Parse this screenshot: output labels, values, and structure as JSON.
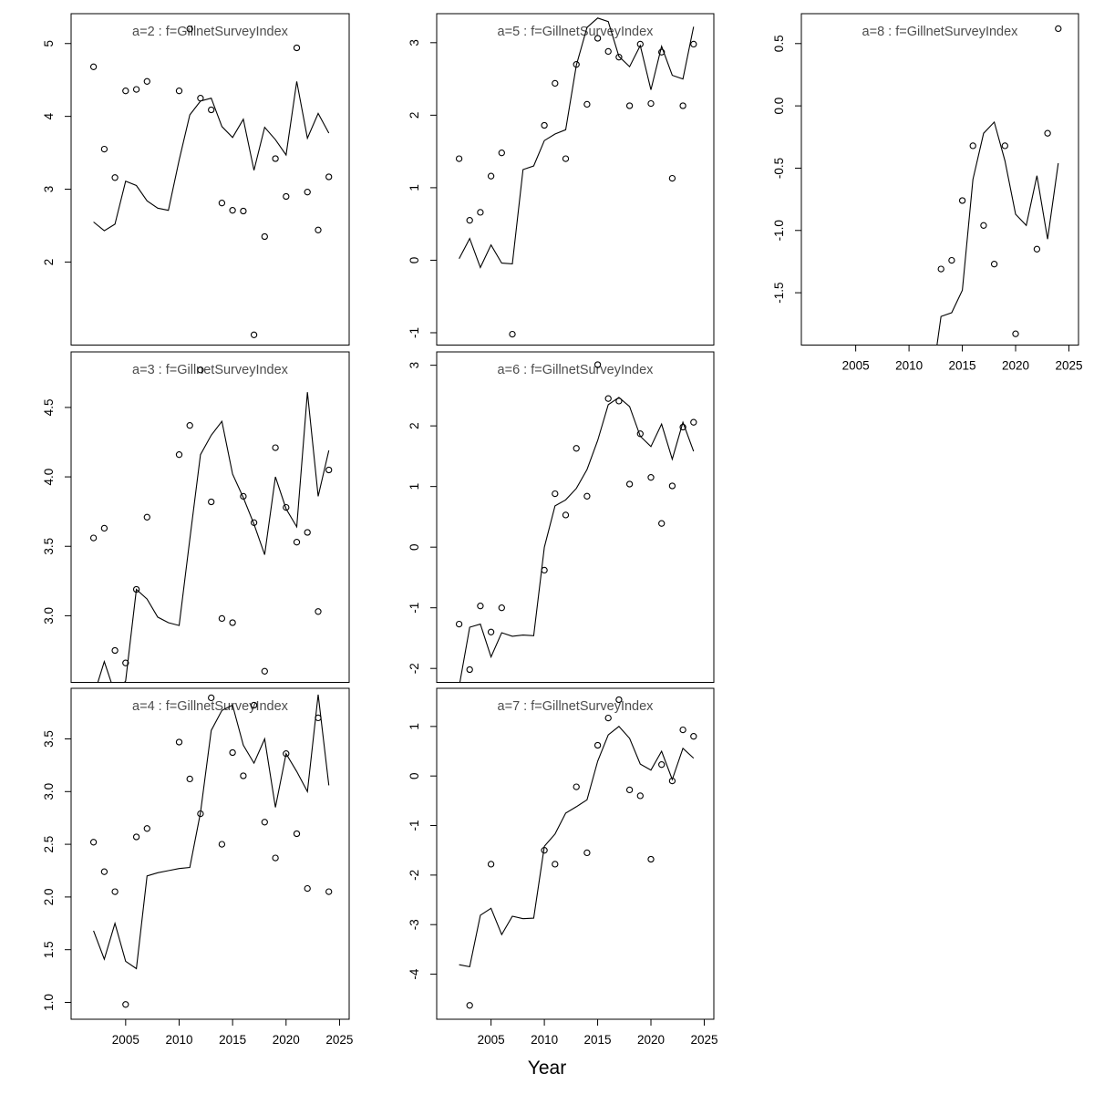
{
  "chart_data": {
    "type": "line",
    "description": "Grid of 7 model-fit panels: open-circle observations and solid fitted line per age class a=2..8 for the GillnetSurveyIndex fleet",
    "xlabel": "Year",
    "xlim": [
      1999.9,
      2025.9
    ],
    "x_ticks": {
      "values": [
        2005,
        2010,
        2015,
        2020,
        2025
      ],
      "labels": [
        "2005",
        "2010",
        "2015",
        "2020",
        "2025"
      ]
    },
    "grid": "off",
    "legend": "none",
    "style": {
      "line_color": "#000000",
      "point_color": "#000000",
      "title_color": "#4d4d4d",
      "axis_color": "#000000"
    },
    "panels": [
      {
        "id": "a2",
        "title": "a=2 : f=GillnetSurveyIndex",
        "row": 0,
        "col": 0,
        "show_xaxis": false,
        "ylim": [
          0.86,
          5.41
        ],
        "y_ticks": {
          "values": [
            5,
            4,
            3,
            2
          ],
          "labels": [
            "5",
            "4",
            "3",
            "2"
          ]
        },
        "observations": {
          "years": [
            2002,
            2003,
            2004,
            2005,
            2006,
            2007,
            2010,
            2011,
            2012,
            2013,
            2014,
            2015,
            2016,
            2017,
            2018,
            2019,
            2020,
            2021,
            2022,
            2023,
            2024
          ],
          "values": [
            4.68,
            3.55,
            3.16,
            4.35,
            4.37,
            4.48,
            4.35,
            5.2,
            4.25,
            4.09,
            2.81,
            2.71,
            2.7,
            1.0,
            2.35,
            3.42,
            2.9,
            4.94,
            2.96,
            2.44,
            3.17
          ]
        },
        "fit": {
          "years": [
            2002,
            2003,
            2004,
            2005,
            2006,
            2007,
            2008,
            2009,
            2010,
            2011,
            2012,
            2013,
            2014,
            2015,
            2016,
            2017,
            2018,
            2019,
            2020,
            2021,
            2022,
            2023,
            2024
          ],
          "values": [
            2.55,
            2.43,
            2.52,
            3.11,
            3.05,
            2.84,
            2.74,
            2.71,
            3.4,
            4.02,
            4.21,
            4.25,
            3.86,
            3.71,
            3.96,
            3.26,
            3.85,
            3.68,
            3.47,
            4.48,
            3.7,
            4.04,
            3.77
          ]
        }
      },
      {
        "id": "a3",
        "title": "a=3 : f=GillnetSurveyIndex",
        "row": 1,
        "col": 0,
        "show_xaxis": false,
        "ylim": [
          2.52,
          4.9
        ],
        "y_ticks": {
          "values": [
            4.5,
            4.0,
            3.5,
            3.0
          ],
          "labels": [
            "4.5",
            "4.0",
            "3.5",
            "3.0"
          ]
        },
        "observations": {
          "years": [
            2002,
            2003,
            2004,
            2005,
            2006,
            2007,
            2010,
            2011,
            2012,
            2013,
            2014,
            2015,
            2016,
            2017,
            2018,
            2019,
            2020,
            2021,
            2022,
            2023,
            2024
          ],
          "values": [
            3.56,
            3.63,
            2.75,
            2.66,
            3.19,
            3.71,
            4.16,
            4.37,
            4.77,
            3.82,
            2.98,
            2.95,
            3.86,
            3.67,
            2.6,
            4.21,
            3.78,
            3.53,
            3.6,
            3.03,
            4.05
          ]
        },
        "fit": {
          "years": [
            2002,
            2003,
            2004,
            2005,
            2006,
            2007,
            2008,
            2009,
            2010,
            2011,
            2012,
            2013,
            2014,
            2015,
            2016,
            2017,
            2018,
            2019,
            2020,
            2021,
            2022,
            2023,
            2024
          ],
          "values": [
            2.42,
            2.67,
            2.44,
            2.53,
            3.19,
            3.12,
            2.99,
            2.95,
            2.93,
            3.55,
            4.16,
            4.3,
            4.4,
            4.02,
            3.85,
            3.66,
            3.44,
            4.0,
            3.77,
            3.64,
            4.61,
            3.86,
            4.19
          ]
        }
      },
      {
        "id": "a4",
        "title": "a=4 : f=GillnetSurveyIndex",
        "row": 2,
        "col": 0,
        "show_xaxis": true,
        "ylim": [
          0.84,
          3.98
        ],
        "y_ticks": {
          "values": [
            3.5,
            3.0,
            2.5,
            2.0,
            1.5,
            1.0
          ],
          "labels": [
            "3.5",
            "3.0",
            "2.5",
            "2.0",
            "1.5",
            "1.0"
          ]
        },
        "observations": {
          "years": [
            2002,
            2003,
            2004,
            2005,
            2006,
            2007,
            2010,
            2011,
            2012,
            2013,
            2014,
            2015,
            2016,
            2017,
            2018,
            2019,
            2020,
            2021,
            2022,
            2023,
            2024
          ],
          "values": [
            2.52,
            2.24,
            2.05,
            0.98,
            2.57,
            2.65,
            3.47,
            3.12,
            2.79,
            3.89,
            2.5,
            3.37,
            3.15,
            3.82,
            2.71,
            2.37,
            3.36,
            2.6,
            2.08,
            3.7,
            2.05
          ]
        },
        "fit": {
          "years": [
            2002,
            2003,
            2004,
            2005,
            2006,
            2007,
            2008,
            2009,
            2010,
            2011,
            2012,
            2013,
            2014,
            2015,
            2016,
            2017,
            2018,
            2019,
            2020,
            2021,
            2022,
            2023,
            2024
          ],
          "values": [
            1.68,
            1.41,
            1.75,
            1.39,
            1.32,
            2.2,
            2.23,
            2.25,
            2.27,
            2.28,
            2.8,
            3.58,
            3.77,
            3.82,
            3.44,
            3.27,
            3.5,
            2.85,
            3.36,
            3.19,
            3.0,
            3.92,
            3.06
          ]
        }
      },
      {
        "id": "a5",
        "title": "a=5 : f=GillnetSurveyIndex",
        "row": 0,
        "col": 1,
        "show_xaxis": false,
        "ylim": [
          -1.17,
          3.4
        ],
        "y_ticks": {
          "values": [
            3,
            2,
            1,
            0,
            -1
          ],
          "labels": [
            "3",
            "2",
            "1",
            "0",
            "-1"
          ]
        },
        "observations": {
          "years": [
            2002,
            2003,
            2004,
            2005,
            2006,
            2007,
            2010,
            2011,
            2012,
            2013,
            2014,
            2015,
            2016,
            2017,
            2018,
            2019,
            2020,
            2021,
            2022,
            2023,
            2024
          ],
          "values": [
            1.4,
            0.55,
            0.66,
            1.16,
            1.48,
            -1.02,
            1.86,
            2.44,
            1.4,
            2.7,
            2.15,
            3.06,
            2.88,
            2.8,
            2.13,
            2.98,
            2.16,
            2.87,
            1.13,
            2.13,
            2.98
          ]
        },
        "fit": {
          "years": [
            2002,
            2003,
            2004,
            2005,
            2006,
            2007,
            2008,
            2009,
            2010,
            2011,
            2012,
            2013,
            2014,
            2015,
            2016,
            2017,
            2018,
            2019,
            2020,
            2021,
            2022,
            2023,
            2024
          ],
          "values": [
            0.02,
            0.3,
            -0.1,
            0.21,
            -0.04,
            -0.05,
            1.25,
            1.3,
            1.65,
            1.74,
            1.8,
            2.69,
            3.21,
            3.34,
            3.29,
            2.81,
            2.67,
            2.96,
            2.35,
            2.95,
            2.55,
            2.5,
            3.22
          ]
        }
      },
      {
        "id": "a6",
        "title": "a=6 : f=GillnetSurveyIndex",
        "row": 1,
        "col": 1,
        "show_xaxis": false,
        "ylim": [
          -2.23,
          3.22
        ],
        "y_ticks": {
          "values": [
            3,
            2,
            1,
            0,
            -1,
            -2
          ],
          "labels": [
            "3",
            "2",
            "1",
            "0",
            "-1",
            "-2"
          ]
        },
        "observations": {
          "years": [
            2002,
            2003,
            2004,
            2005,
            2006,
            2010,
            2011,
            2012,
            2013,
            2014,
            2015,
            2016,
            2017,
            2018,
            2019,
            2020,
            2021,
            2022,
            2023,
            2024
          ],
          "values": [
            -1.27,
            -2.02,
            -0.97,
            -1.4,
            -1.0,
            -0.38,
            0.88,
            0.53,
            1.63,
            0.84,
            3.01,
            2.45,
            2.41,
            1.04,
            1.87,
            1.15,
            0.39,
            1.01,
            1.98,
            2.06
          ]
        },
        "fit": {
          "years": [
            2002,
            2003,
            2004,
            2005,
            2006,
            2007,
            2008,
            2009,
            2010,
            2011,
            2012,
            2013,
            2014,
            2015,
            2016,
            2017,
            2018,
            2019,
            2020,
            2021,
            2022,
            2023,
            2024
          ],
          "values": [
            -2.3,
            -1.32,
            -1.27,
            -1.81,
            -1.41,
            -1.47,
            -1.45,
            -1.46,
            0.0,
            0.68,
            0.78,
            0.97,
            1.28,
            1.76,
            2.35,
            2.47,
            2.32,
            1.83,
            1.66,
            2.03,
            1.45,
            2.06,
            1.58
          ]
        }
      },
      {
        "id": "a7",
        "title": "a=7 : f=GillnetSurveyIndex",
        "row": 2,
        "col": 1,
        "show_xaxis": true,
        "ylim": [
          -4.91,
          1.77
        ],
        "y_ticks": {
          "values": [
            1,
            0,
            -1,
            -2,
            -3,
            -4
          ],
          "labels": [
            "1",
            "0",
            "-1",
            "-2",
            "-3",
            "-4"
          ]
        },
        "observations": {
          "years": [
            2003,
            2005,
            2010,
            2011,
            2013,
            2014,
            2015,
            2016,
            2017,
            2018,
            2019,
            2020,
            2021,
            2022,
            2023,
            2024
          ],
          "values": [
            -4.63,
            -1.78,
            -1.5,
            -1.78,
            -0.22,
            -1.55,
            0.62,
            1.17,
            1.54,
            -0.28,
            -0.4,
            -1.68,
            0.23,
            -0.1,
            0.93,
            0.8
          ]
        },
        "fit": {
          "years": [
            2002,
            2003,
            2004,
            2005,
            2006,
            2007,
            2008,
            2009,
            2010,
            2011,
            2012,
            2013,
            2014,
            2015,
            2016,
            2017,
            2018,
            2019,
            2020,
            2021,
            2022,
            2023,
            2024
          ],
          "values": [
            -3.81,
            -3.85,
            -2.81,
            -2.67,
            -3.2,
            -2.83,
            -2.88,
            -2.87,
            -1.42,
            -1.17,
            -0.75,
            -0.62,
            -0.48,
            0.3,
            0.83,
            1.0,
            0.76,
            0.24,
            0.12,
            0.5,
            -0.07,
            0.56,
            0.36
          ]
        }
      },
      {
        "id": "a8",
        "title": "a=8 : f=GillnetSurveyIndex",
        "row": 0,
        "col": 2,
        "show_xaxis": true,
        "ylim": [
          -1.92,
          0.74
        ],
        "y_ticks": {
          "values": [
            0.5,
            0.0,
            -0.5,
            -1.0,
            -1.5
          ],
          "labels": [
            "0.5",
            "0.0",
            "-0.5",
            "-1.0",
            "-1.5"
          ]
        },
        "observations": {
          "years": [
            2013,
            2014,
            2015,
            2016,
            2017,
            2018,
            2019,
            2020,
            2022,
            2023,
            2024
          ],
          "values": [
            -1.31,
            -1.24,
            -0.76,
            -0.32,
            -0.96,
            -1.27,
            -0.32,
            -1.83,
            -1.15,
            -0.22,
            0.62
          ]
        },
        "fit": {
          "years": [
            2012,
            2013,
            2014,
            2015,
            2016,
            2017,
            2018,
            2019,
            2020,
            2021,
            2022,
            2023,
            2024
          ],
          "values": [
            -2.3,
            -1.69,
            -1.66,
            -1.48,
            -0.59,
            -0.22,
            -0.13,
            -0.44,
            -0.87,
            -0.96,
            -0.56,
            -1.07,
            -0.46
          ]
        }
      }
    ]
  }
}
